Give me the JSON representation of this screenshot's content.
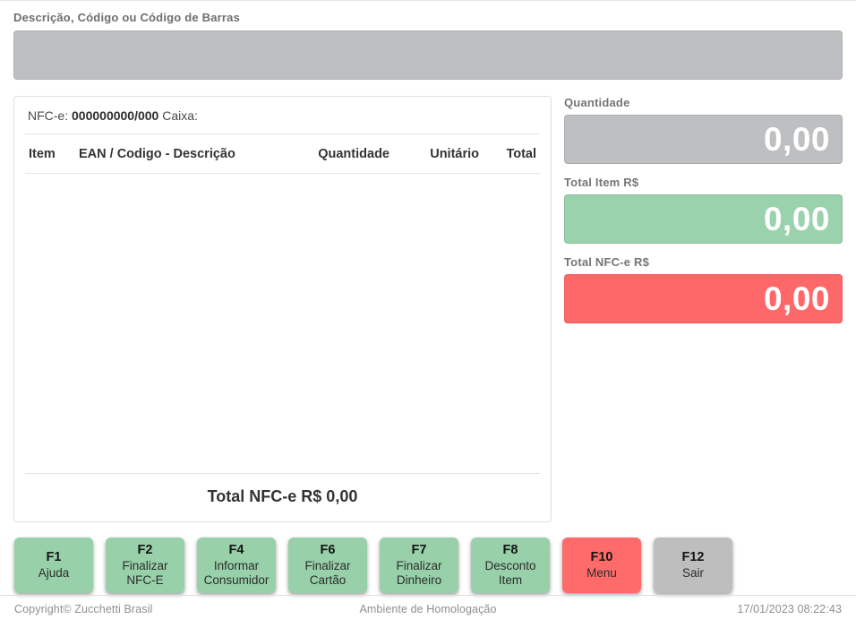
{
  "scan": {
    "label": "Descrição, Código ou Código de Barras",
    "value": ""
  },
  "receipt": {
    "nfce_label": "NFC-e:",
    "nfce_number": "000000000/000",
    "caixa_label": "Caixa:",
    "columns": [
      "Item",
      "EAN / Codigo - Descrição",
      "Quantidade",
      "Unitário",
      "Total"
    ],
    "items": [],
    "total_text": "Total NFC-e R$ 0,00"
  },
  "totals": {
    "quantity": {
      "label": "Quantidade",
      "value": "0,00",
      "color": "#bdbfc1"
    },
    "item_total": {
      "label": "Total Item R$",
      "value": "0,00",
      "color": "#9bd2ae"
    },
    "nfce_total": {
      "label": "Total NFC-e R$",
      "value": "0,00",
      "color": "#ff6868"
    }
  },
  "function_buttons": [
    {
      "key": "F1",
      "label": "Ajuda",
      "color": "#97d0a9"
    },
    {
      "key": "F2",
      "label": "Finalizar NFC-E",
      "color": "#97d0a9"
    },
    {
      "key": "F4",
      "label": "Informar Consumidor",
      "color": "#97d0a9"
    },
    {
      "key": "F6",
      "label": "Finalizar Cartão",
      "color": "#97d0a9"
    },
    {
      "key": "F7",
      "label": "Finalizar Dinheiro",
      "color": "#97d0a9"
    },
    {
      "key": "F8",
      "label": "Desconto Item",
      "color": "#97d0a9"
    },
    {
      "key": "F10",
      "label": "Menu",
      "color": "#ff6b6b"
    },
    {
      "key": "F12",
      "label": "Sair",
      "color": "#bebebe"
    }
  ],
  "footer": {
    "copyright": "Copyright© Zucchetti Brasil",
    "environment": "Ambiente de Homologação",
    "datetime": "17/01/2023 08:22:43"
  }
}
